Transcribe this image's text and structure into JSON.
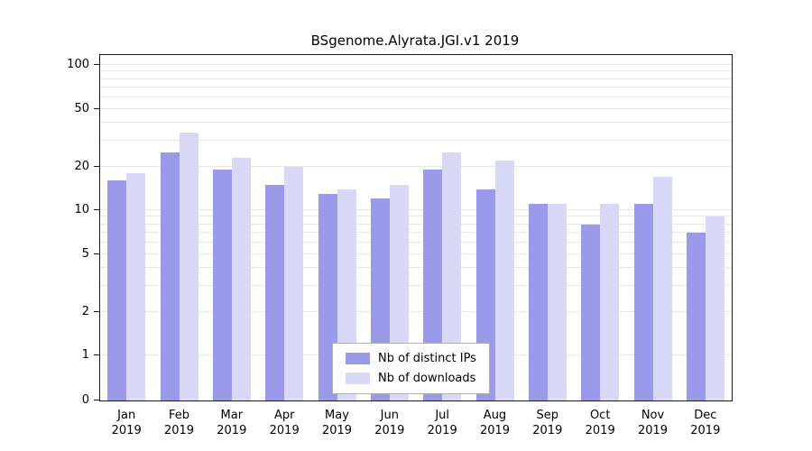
{
  "chart_data": {
    "type": "bar",
    "title": "BSgenome.Alyrata.JGI.v1 2019",
    "x": [
      {
        "month": "Jan",
        "year": "2019"
      },
      {
        "month": "Feb",
        "year": "2019"
      },
      {
        "month": "Mar",
        "year": "2019"
      },
      {
        "month": "Apr",
        "year": "2019"
      },
      {
        "month": "May",
        "year": "2019"
      },
      {
        "month": "Jun",
        "year": "2019"
      },
      {
        "month": "Jul",
        "year": "2019"
      },
      {
        "month": "Aug",
        "year": "2019"
      },
      {
        "month": "Sep",
        "year": "2019"
      },
      {
        "month": "Oct",
        "year": "2019"
      },
      {
        "month": "Nov",
        "year": "2019"
      },
      {
        "month": "Dec",
        "year": "2019"
      }
    ],
    "series": [
      {
        "name": "Nb of distinct IPs",
        "color": "#9b99ea",
        "values": [
          16,
          25,
          19,
          15,
          13,
          12,
          19,
          14,
          11,
          8,
          11,
          7
        ]
      },
      {
        "name": "Nb of downloads",
        "color": "#d9d8f7",
        "values": [
          18,
          34,
          23,
          20,
          14,
          15,
          25,
          22,
          11,
          11,
          17,
          9
        ]
      }
    ],
    "yticks": [
      0,
      1,
      2,
      5,
      10,
      20,
      50,
      100
    ],
    "grid_values": [
      1,
      2,
      3,
      4,
      5,
      6,
      7,
      8,
      9,
      10,
      20,
      30,
      40,
      50,
      60,
      70,
      80,
      90,
      100
    ],
    "scale": "log10 with zero baseline",
    "ylim": [
      0,
      130
    ],
    "grid": true,
    "legend_position": "bottom-center-inside"
  },
  "colors": {
    "grid": "#e7e7e7",
    "axis": "#1a1a1a",
    "background": "#ffffff",
    "text": "#000000"
  }
}
